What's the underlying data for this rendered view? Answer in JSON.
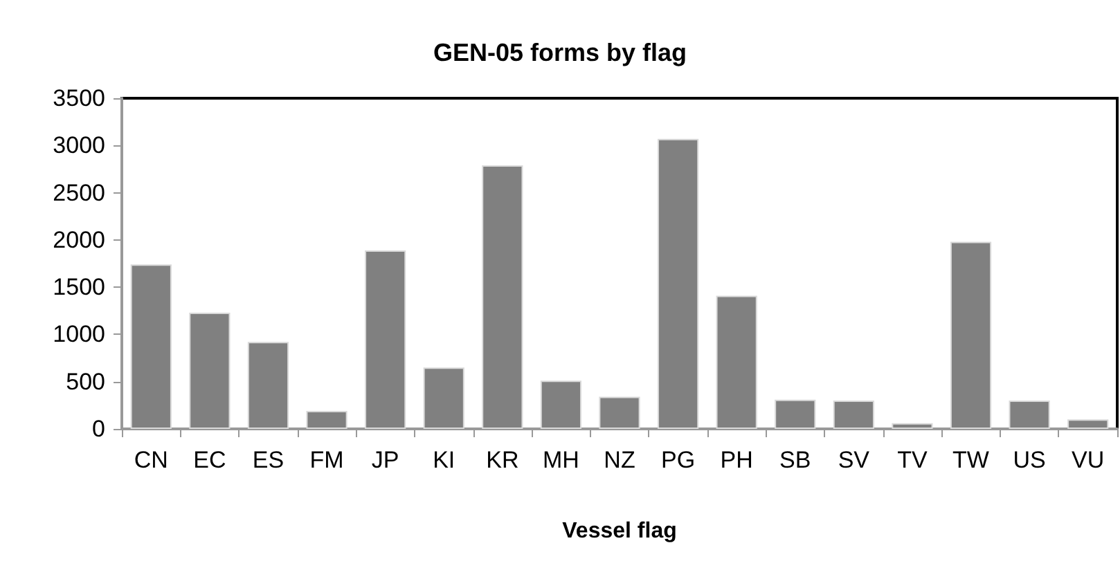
{
  "chart_data": {
    "type": "bar",
    "title": "GEN-05 forms by flag",
    "xlabel": "Vessel flag",
    "categories": [
      "CN",
      "EC",
      "ES",
      "FM",
      "JP",
      "KI",
      "KR",
      "MH",
      "NZ",
      "PG",
      "PH",
      "SB",
      "SV",
      "TV",
      "TW",
      "US",
      "VU"
    ],
    "values": [
      1740,
      1230,
      920,
      190,
      1890,
      650,
      2790,
      510,
      340,
      3070,
      1410,
      310,
      300,
      60,
      1980,
      300,
      100
    ],
    "color": "#808080",
    "ylim": [
      0,
      3500
    ],
    "yticks": [
      0,
      500,
      1000,
      1500,
      2000,
      2500,
      3000,
      3500
    ],
    "grid": false
  }
}
